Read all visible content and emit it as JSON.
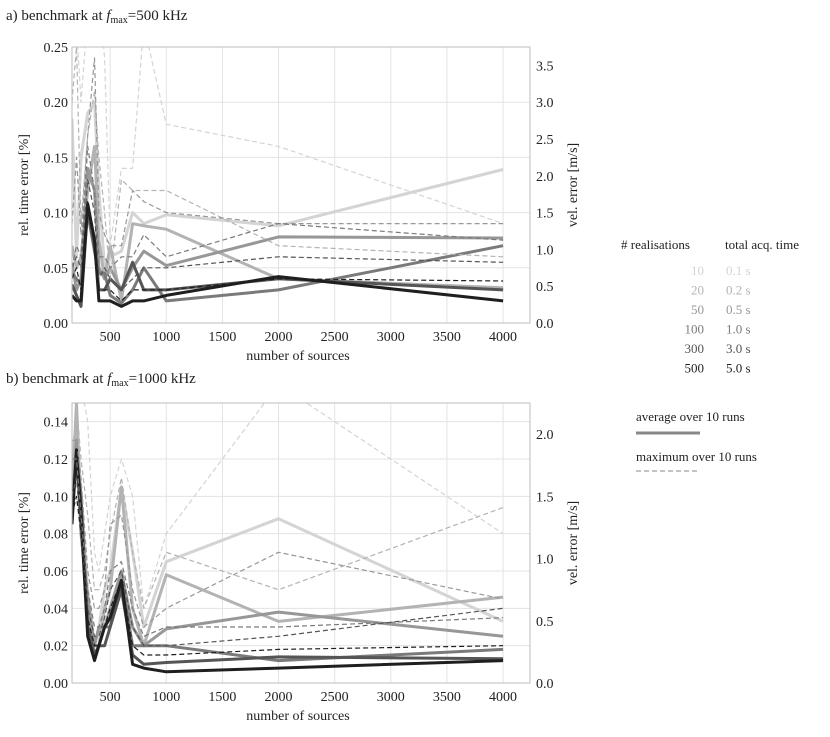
{
  "colors": {
    "series": [
      "#d4d4d4",
      "#b3b3b3",
      "#979797",
      "#7a7a7a",
      "#555555",
      "#1f1f1f"
    ]
  },
  "legend": {
    "realisations_header": "# realisations",
    "time_header": "total acq. time",
    "rows": [
      {
        "realisations": "10",
        "time": "0.1 s"
      },
      {
        "realisations": "20",
        "time": "0.2 s"
      },
      {
        "realisations": "50",
        "time": "0.5 s"
      },
      {
        "realisations": "100",
        "time": "1.0 s"
      },
      {
        "realisations": "300",
        "time": "3.0 s"
      },
      {
        "realisations": "500",
        "time": "5.0 s"
      }
    ],
    "average_label": "average over 10 runs",
    "maximum_label": "maximum over 10 runs"
  },
  "chart_data": [
    {
      "type": "line",
      "title_prefix": "a) benchmark at ",
      "title_var": "f",
      "title_sub": "max",
      "title_suffix": "=500 kHz",
      "xlabel": "number of sources",
      "ylabel": "rel. time error [%]",
      "y2label": "vel. error [m/s]",
      "xlim": [
        160,
        4240
      ],
      "ylim": [
        0,
        0.25
      ],
      "y2lim": [
        0,
        3.75
      ],
      "xticks": [
        500,
        1000,
        1500,
        2000,
        2500,
        3000,
        3500,
        4000
      ],
      "xtick_labels": [
        "500",
        "1000",
        "1500",
        "2000",
        "2500",
        "3000",
        "3500",
        "4000"
      ],
      "yticks": [
        0,
        0.05,
        0.1,
        0.15,
        0.2,
        0.25
      ],
      "ytick_labels": [
        "0.00",
        "0.05",
        "0.10",
        "0.15",
        "0.20",
        "0.25"
      ],
      "y2ticks": [
        0,
        0.5,
        1,
        1.5,
        2,
        2.5,
        3,
        3.5
      ],
      "y2tick_labels": [
        "0.0",
        "0.5",
        "1.0",
        "1.5",
        "2.0",
        "2.5",
        "3.0",
        "3.5"
      ],
      "x": [
        160,
        200,
        240,
        300,
        360,
        400,
        450,
        500,
        600,
        700,
        800,
        1000,
        2000,
        4000
      ],
      "series": [
        {
          "name": "10 realisations (average)",
          "values": [
            0.185,
            0.06,
            0.15,
            0.19,
            0.2,
            0.12,
            0.05,
            0.06,
            0.065,
            0.1,
            0.09,
            0.098,
            0.088,
            0.139
          ]
        },
        {
          "name": "20 realisations (average)",
          "values": [
            0.07,
            0.05,
            0.06,
            0.12,
            0.16,
            0.075,
            0.04,
            0.07,
            0.02,
            0.09,
            0.088,
            0.085,
            0.04,
            0.032
          ]
        },
        {
          "name": "50 realisations (average)",
          "values": [
            0.055,
            0.03,
            0.04,
            0.14,
            0.12,
            0.05,
            0.04,
            0.05,
            0.03,
            0.05,
            0.065,
            0.052,
            0.078,
            0.077
          ]
        },
        {
          "name": "100 realisations (average)",
          "values": [
            0.045,
            0.04,
            0.035,
            0.1,
            0.065,
            0.045,
            0.045,
            0.025,
            0.018,
            0.03,
            0.05,
            0.02,
            0.03,
            0.07
          ]
        },
        {
          "name": "300 realisations (average)",
          "values": [
            0.035,
            0.025,
            0.015,
            0.105,
            0.07,
            0.03,
            0.03,
            0.04,
            0.03,
            0.055,
            0.03,
            0.03,
            0.04,
            0.03
          ]
        },
        {
          "name": "500 realisations (average)",
          "values": [
            0.025,
            0.02,
            0.02,
            0.108,
            0.075,
            0.02,
            0.02,
            0.02,
            0.015,
            0.02,
            0.02,
            0.025,
            0.042,
            0.02
          ]
        },
        {
          "name": "10 realisations (maximum)",
          "values": [
            0.27,
            0.27,
            0.2,
            0.28,
            0.29,
            0.3,
            0.24,
            0.07,
            0.14,
            0.14,
            0.27,
            0.18,
            0.16,
            0.09
          ]
        },
        {
          "name": "20 realisations (maximum)",
          "values": [
            0.2,
            0.25,
            0.09,
            0.17,
            0.21,
            0.15,
            0.1,
            0.04,
            0.13,
            0.12,
            0.12,
            0.12,
            0.07,
            0.06
          ]
        },
        {
          "name": "50 realisations (maximum)",
          "values": [
            0.09,
            0.15,
            0.08,
            0.17,
            0.24,
            0.1,
            0.08,
            0.07,
            0.07,
            0.12,
            0.11,
            0.1,
            0.09,
            0.09
          ]
        },
        {
          "name": "100 realisations (maximum)",
          "values": [
            0.05,
            0.07,
            0.06,
            0.16,
            0.12,
            0.06,
            0.06,
            0.05,
            0.06,
            0.06,
            0.08,
            0.06,
            0.09,
            0.075
          ]
        },
        {
          "name": "300 realisations (maximum)",
          "values": [
            0.05,
            0.06,
            0.05,
            0.13,
            0.1,
            0.04,
            0.05,
            0.04,
            0.03,
            0.04,
            0.05,
            0.05,
            0.06,
            0.055
          ]
        },
        {
          "name": "500 realisations (maximum)",
          "values": [
            0.04,
            0.05,
            0.03,
            0.11,
            0.08,
            0.03,
            0.03,
            0.03,
            0.02,
            0.03,
            0.03,
            0.03,
            0.04,
            0.038
          ]
        }
      ]
    },
    {
      "type": "line",
      "title_prefix": "b) benchmark at ",
      "title_var": "f",
      "title_sub": "max",
      "title_suffix": "=1000 kHz",
      "xlabel": "number of sources",
      "ylabel": "rel. time error [%]",
      "y2label": "vel. error [m/s]",
      "xlim": [
        160,
        4240
      ],
      "ylim": [
        0,
        0.15
      ],
      "y2lim": [
        0,
        2.25
      ],
      "xticks": [
        500,
        1000,
        1500,
        2000,
        2500,
        3000,
        3500,
        4000
      ],
      "xtick_labels": [
        "500",
        "1000",
        "1500",
        "2000",
        "2500",
        "3000",
        "3500",
        "4000"
      ],
      "yticks": [
        0,
        0.02,
        0.04,
        0.06,
        0.08,
        0.1,
        0.12,
        0.14
      ],
      "ytick_labels": [
        "0.00",
        "0.02",
        "0.04",
        "0.06",
        "0.08",
        "0.10",
        "0.12",
        "0.14"
      ],
      "y2ticks": [
        0,
        0.5,
        1,
        1.5,
        2
      ],
      "y2tick_labels": [
        "0.0",
        "0.5",
        "1.0",
        "1.5",
        "2.0"
      ],
      "x": [
        160,
        200,
        240,
        300,
        360,
        400,
        450,
        500,
        600,
        700,
        800,
        1000,
        2000,
        4000
      ],
      "series": [
        {
          "name": "10 realisations (average)",
          "values": [
            0.12,
            0.14,
            0.1,
            0.05,
            0.02,
            0.03,
            0.05,
            0.06,
            0.105,
            0.07,
            0.03,
            0.065,
            0.088,
            0.033
          ]
        },
        {
          "name": "20 realisations (average)",
          "values": [
            0.1,
            0.15,
            0.09,
            0.04,
            0.015,
            0.02,
            0.04,
            0.05,
            0.105,
            0.04,
            0.02,
            0.058,
            0.033,
            0.046
          ]
        },
        {
          "name": "50 realisations (average)",
          "values": [
            0.09,
            0.13,
            0.08,
            0.045,
            0.02,
            0.03,
            0.03,
            0.04,
            0.06,
            0.03,
            0.02,
            0.029,
            0.038,
            0.025
          ]
        },
        {
          "name": "100 realisations (average)",
          "values": [
            0.1,
            0.12,
            0.09,
            0.03,
            0.02,
            0.02,
            0.03,
            0.03,
            0.055,
            0.02,
            0.02,
            0.02,
            0.012,
            0.018
          ]
        },
        {
          "name": "300 realisations (average)",
          "values": [
            0.09,
            0.12,
            0.1,
            0.03,
            0.015,
            0.02,
            0.02,
            0.03,
            0.05,
            0.015,
            0.01,
            0.011,
            0.014,
            0.013
          ]
        },
        {
          "name": "500 realisations (average)",
          "values": [
            0.085,
            0.125,
            0.09,
            0.025,
            0.012,
            0.02,
            0.03,
            0.035,
            0.055,
            0.01,
            0.008,
            0.006,
            0.008,
            0.012
          ]
        },
        {
          "name": "10 realisations (maximum)",
          "values": [
            0.16,
            0.17,
            0.16,
            0.14,
            0.07,
            0.06,
            0.08,
            0.1,
            0.12,
            0.1,
            0.04,
            0.08,
            0.16,
            0.08
          ]
        },
        {
          "name": "20 realisations (maximum)",
          "values": [
            0.15,
            0.15,
            0.12,
            0.09,
            0.05,
            0.05,
            0.06,
            0.08,
            0.11,
            0.07,
            0.04,
            0.07,
            0.05,
            0.094
          ]
        },
        {
          "name": "50 realisations (maximum)",
          "values": [
            0.13,
            0.13,
            0.11,
            0.06,
            0.04,
            0.04,
            0.05,
            0.085,
            0.09,
            0.05,
            0.03,
            0.04,
            0.07,
            0.045
          ]
        },
        {
          "name": "100 realisations (maximum)",
          "values": [
            0.12,
            0.12,
            0.09,
            0.05,
            0.03,
            0.03,
            0.04,
            0.06,
            0.065,
            0.04,
            0.025,
            0.03,
            0.03,
            0.035
          ]
        },
        {
          "name": "300 realisations (maximum)",
          "values": [
            0.1,
            0.11,
            0.08,
            0.04,
            0.025,
            0.025,
            0.035,
            0.05,
            0.06,
            0.03,
            0.02,
            0.02,
            0.025,
            0.04
          ]
        },
        {
          "name": "500 realisations (maximum)",
          "values": [
            0.09,
            0.1,
            0.08,
            0.035,
            0.02,
            0.02,
            0.03,
            0.04,
            0.055,
            0.02,
            0.015,
            0.015,
            0.018,
            0.02
          ]
        }
      ]
    }
  ]
}
